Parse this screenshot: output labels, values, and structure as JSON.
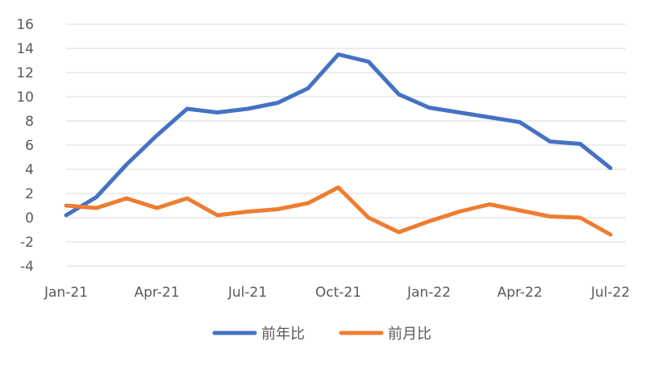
{
  "chart_data": {
    "type": "line",
    "x": [
      "Jan-21",
      "Feb-21",
      "Mar-21",
      "Apr-21",
      "May-21",
      "Jun-21",
      "Jul-21",
      "Aug-21",
      "Sep-21",
      "Oct-21",
      "Nov-21",
      "Dec-21",
      "Jan-22",
      "Feb-22",
      "Mar-22",
      "Apr-22",
      "May-22",
      "Jun-22",
      "Jul-22"
    ],
    "x_tick_labels": [
      "Jan-21",
      "Apr-21",
      "Jul-21",
      "Oct-21",
      "Jan-22",
      "Apr-22",
      "Jul-22"
    ],
    "y_ticks": [
      "16",
      "14",
      "12",
      "10",
      "8",
      "6",
      "4",
      "2",
      "0",
      "-2",
      "-4"
    ],
    "ylim": [
      -4,
      16
    ],
    "grid": true,
    "legend_position": "bottom",
    "series": [
      {
        "name": "前年比",
        "color": "#4472c4",
        "values": [
          0.2,
          1.7,
          4.4,
          6.8,
          9.0,
          8.7,
          9.0,
          9.5,
          10.7,
          13.5,
          12.9,
          10.2,
          9.1,
          8.7,
          8.3,
          7.9,
          6.3,
          6.1,
          4.1
        ]
      },
      {
        "name": "前月比",
        "color": "#ed7d31",
        "values": [
          1.0,
          0.8,
          1.6,
          0.8,
          1.6,
          0.2,
          0.5,
          0.7,
          1.2,
          2.5,
          0.0,
          -1.2,
          -0.3,
          0.5,
          1.1,
          0.6,
          0.1,
          0.0,
          -1.4
        ]
      }
    ]
  }
}
